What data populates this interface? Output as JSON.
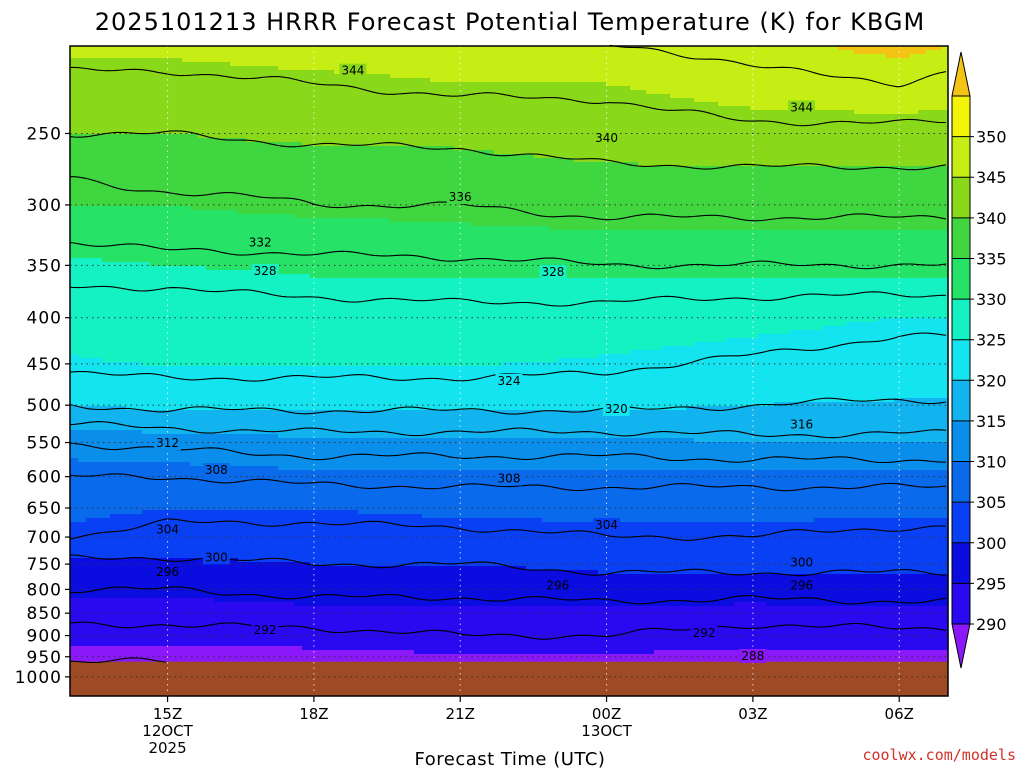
{
  "chart_data": {
    "type": "heatmap",
    "title": "2025101213 HRRR Forecast Potential Temperature (K) for KBGM",
    "xlabel": "Forecast Time (UTC)",
    "ylabel": "",
    "credit": "coolwx.com/models",
    "y_scale": "log",
    "y_axis_reversed": true,
    "grid": "dotted",
    "y_ticks": [
      "250",
      "300",
      "350",
      "400",
      "450",
      "500",
      "550",
      "600",
      "650",
      "700",
      "750",
      "800",
      "850",
      "900",
      "950",
      "1000"
    ],
    "x_ticks": [
      {
        "line1": "15Z",
        "line2": "12OCT",
        "line3": "2025"
      },
      {
        "line1": "18Z",
        "line2": "",
        "line3": ""
      },
      {
        "line1": "21Z",
        "line2": "",
        "line3": ""
      },
      {
        "line1": "00Z",
        "line2": "13OCT",
        "line3": ""
      },
      {
        "line1": "03Z",
        "line2": "",
        "line3": ""
      },
      {
        "line1": "06Z",
        "line2": "",
        "line3": ""
      }
    ],
    "x_hours": [
      13.0,
      15.0,
      18.0,
      21.0,
      24.0,
      27.0,
      30.0,
      31.0
    ],
    "xlim_hours": [
      13.0,
      31.0
    ],
    "ylim_hpa": [
      1050,
      200
    ],
    "surface_pressure_hpa": 962,
    "levels": [
      {
        "p": 200,
        "t": [
          346,
          346,
          347,
          347,
          348,
          349,
          351,
          350
        ]
      },
      {
        "p": 220,
        "t": [
          343,
          343,
          344,
          345,
          345,
          347,
          348,
          347
        ]
      },
      {
        "p": 250,
        "t": [
          340,
          340,
          341,
          341,
          342,
          343,
          343,
          343
        ]
      },
      {
        "p": 280,
        "t": [
          336,
          337,
          337,
          338,
          339,
          339,
          339,
          339
        ]
      },
      {
        "p": 300,
        "t": [
          335,
          335,
          336,
          336,
          337,
          337,
          337,
          337
        ]
      },
      {
        "p": 330,
        "t": [
          332,
          333,
          333,
          334,
          334,
          334,
          334,
          334
        ]
      },
      {
        "p": 350,
        "t": [
          329,
          330,
          331,
          331,
          332,
          332,
          332,
          332
        ]
      },
      {
        "p": 370,
        "t": [
          328,
          328,
          329,
          329,
          329,
          329,
          329,
          329
        ]
      },
      {
        "p": 400,
        "t": [
          325,
          326,
          326,
          327,
          327,
          326,
          325,
          325
        ]
      },
      {
        "p": 440,
        "t": [
          325,
          326,
          326,
          326,
          325,
          324,
          323,
          323
        ]
      },
      {
        "p": 480,
        "t": [
          323,
          323,
          323,
          323,
          323,
          322,
          322,
          322
        ]
      },
      {
        "p": 500,
        "t": [
          320,
          321,
          321,
          321,
          321,
          320,
          319,
          319
        ]
      },
      {
        "p": 550,
        "t": [
          312,
          313,
          314,
          314,
          314,
          315,
          315,
          315
        ]
      },
      {
        "p": 600,
        "t": [
          308,
          308,
          309,
          309,
          309,
          309,
          309,
          309
        ]
      },
      {
        "p": 650,
        "t": [
          306,
          305,
          305,
          306,
          306,
          306,
          306,
          306
        ]
      },
      {
        "p": 700,
        "t": [
          304,
          303,
          303,
          303,
          304,
          304,
          303,
          303
        ]
      },
      {
        "p": 750,
        "t": [
          299,
          299,
          300,
          300,
          301,
          301,
          301,
          301
        ]
      },
      {
        "p": 800,
        "t": [
          296,
          296,
          297,
          297,
          298,
          298,
          298,
          298
        ]
      },
      {
        "p": 850,
        "t": [
          293,
          293,
          294,
          294,
          294,
          293,
          294,
          294
        ]
      },
      {
        "p": 900,
        "t": [
          291,
          291,
          291,
          292,
          292,
          291,
          291,
          291
        ]
      },
      {
        "p": 962,
        "t": [
          288,
          288,
          289,
          289,
          289,
          289,
          289,
          289
        ]
      }
    ],
    "contour_labels": [
      {
        "v": 344,
        "x": 18.8,
        "p": 213
      },
      {
        "v": 344,
        "x": 28.0,
        "p": 234
      },
      {
        "v": 340,
        "x": 24.0,
        "p": 253
      },
      {
        "v": 336,
        "x": 21.0,
        "p": 294
      },
      {
        "v": 332,
        "x": 16.9,
        "p": 330
      },
      {
        "v": 328,
        "x": 17.0,
        "p": 355
      },
      {
        "v": 328,
        "x": 22.9,
        "p": 356
      },
      {
        "v": 324,
        "x": 22.0,
        "p": 470
      },
      {
        "v": 320,
        "x": 24.2,
        "p": 505
      },
      {
        "v": 316,
        "x": 28.0,
        "p": 525
      },
      {
        "v": 312,
        "x": 15.0,
        "p": 551
      },
      {
        "v": 308,
        "x": 16.0,
        "p": 590
      },
      {
        "v": 308,
        "x": 22.0,
        "p": 603
      },
      {
        "v": 304,
        "x": 15.0,
        "p": 687
      },
      {
        "v": 304,
        "x": 24.0,
        "p": 679
      },
      {
        "v": 300,
        "x": 16.0,
        "p": 737
      },
      {
        "v": 300,
        "x": 28.0,
        "p": 747
      },
      {
        "v": 296,
        "x": 15.0,
        "p": 765
      },
      {
        "v": 296,
        "x": 23.0,
        "p": 792
      },
      {
        "v": 296,
        "x": 28.0,
        "p": 792
      },
      {
        "v": 292,
        "x": 17.0,
        "p": 887
      },
      {
        "v": 292,
        "x": 26.0,
        "p": 894
      },
      {
        "v": 288,
        "x": 27.0,
        "p": 948
      }
    ],
    "colorbar": {
      "levels": [
        290,
        295,
        300,
        305,
        310,
        315,
        320,
        325,
        330,
        335,
        340,
        345,
        350
      ],
      "colors": [
        "#8a18f8",
        "#2a08f0",
        "#0a0ce0",
        "#0a40f4",
        "#0a6aec",
        "#0a8eec",
        "#12b4f0",
        "#14e4f0",
        "#14f2c4",
        "#26e266",
        "#40d640",
        "#8ad81a",
        "#c6ee14",
        "#f4f40a",
        "#f4c414"
      ],
      "labels": [
        "290",
        "295",
        "300",
        "305",
        "310",
        "315",
        "320",
        "325",
        "330",
        "335",
        "340",
        "345",
        "350"
      ]
    },
    "ground_color": "#9e4a24",
    "contour_interval": 4
  }
}
